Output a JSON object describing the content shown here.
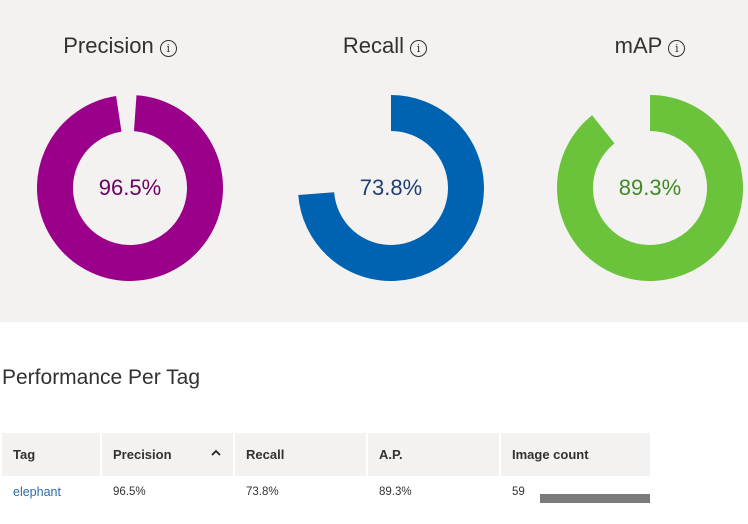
{
  "metrics": [
    {
      "title": "Precision",
      "value_text": "96.5%",
      "value": 96.5,
      "color": "#9a0089",
      "text_color": "#6b0060"
    },
    {
      "title": "Recall",
      "value_text": "73.8%",
      "value": 73.8,
      "color": "#0063b1",
      "text_color": "#1f3f73"
    },
    {
      "title": "mAP",
      "value_text": "89.3%",
      "value": 89.3,
      "color": "#6bc33b",
      "text_color": "#3f8a25"
    }
  ],
  "info_glyph": "i",
  "performance": {
    "title": "Performance Per Tag",
    "columns": [
      "Tag",
      "Precision",
      "Recall",
      "A.P.",
      "Image count"
    ],
    "rows": [
      {
        "tag": "elephant",
        "precision": "96.5%",
        "recall": "73.8%",
        "ap": "89.3%",
        "image_count": "59",
        "image_count_fill": 1.0
      }
    ]
  }
}
